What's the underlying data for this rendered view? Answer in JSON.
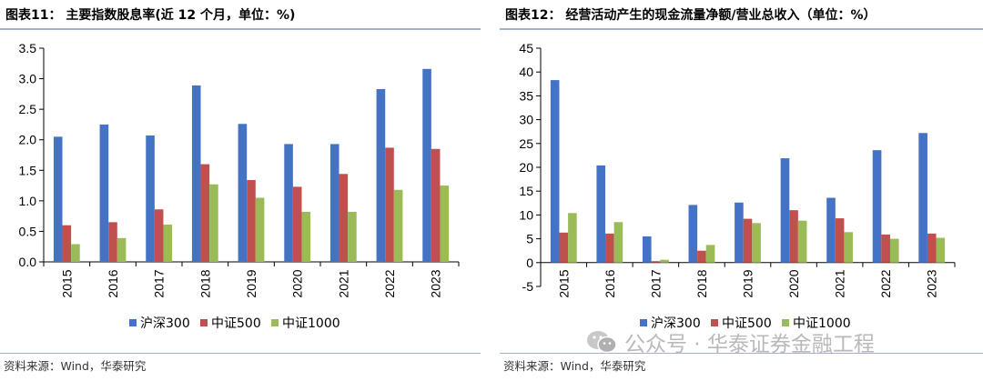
{
  "colors": {
    "hs300": "#4472c4",
    "zz500": "#c0504d",
    "zz1000": "#9bbb59",
    "rule": "#9fb5cc"
  },
  "left": {
    "title": "图表11：  主要指数股息率(近 12 个月，单位：%)",
    "source": "资料来源：Wind，华泰研究"
  },
  "right": {
    "title": "图表12：  经营活动产生的现金流量净额/营业总收入（单位：%）",
    "source": "资料来源：Wind，华泰研究"
  },
  "watermark": {
    "text": "公众号 · 华泰证券金融工程",
    "icon": "wechat-icon"
  },
  "chart_data": [
    {
      "type": "bar",
      "categories": [
        "2015",
        "2016",
        "2017",
        "2018",
        "2019",
        "2020",
        "2021",
        "2022",
        "2023"
      ],
      "series": [
        {
          "name": "沪深300",
          "values": [
            2.05,
            2.25,
            2.07,
            2.89,
            2.26,
            1.93,
            1.93,
            2.83,
            3.16
          ]
        },
        {
          "name": "中证500",
          "values": [
            0.6,
            0.65,
            0.86,
            1.6,
            1.34,
            1.23,
            1.44,
            1.87,
            1.85
          ]
        },
        {
          "name": "中证1000",
          "values": [
            0.29,
            0.39,
            0.61,
            1.27,
            1.05,
            0.82,
            0.82,
            1.18,
            1.25
          ]
        }
      ],
      "ylim": [
        0,
        3.5
      ],
      "yticks": [
        "0.0",
        "0.5",
        "1.0",
        "1.5",
        "2.0",
        "2.5",
        "3.0",
        "3.5"
      ],
      "ystep": 0.5,
      "grid": false,
      "legend": "bottom",
      "title": "",
      "xlabel": "",
      "ylabel": ""
    },
    {
      "type": "bar",
      "categories": [
        "2015",
        "2016",
        "2017",
        "2018",
        "2019",
        "2020",
        "2021",
        "2022",
        "2023"
      ],
      "series": [
        {
          "name": "沪深300",
          "values": [
            38.3,
            20.4,
            5.5,
            12.1,
            12.6,
            21.9,
            13.6,
            23.6,
            27.2
          ]
        },
        {
          "name": "中证500",
          "values": [
            6.3,
            6.1,
            0.3,
            2.5,
            9.2,
            11.0,
            9.3,
            5.9,
            6.1
          ]
        },
        {
          "name": "中证1000",
          "values": [
            10.4,
            8.5,
            0.6,
            3.7,
            8.3,
            8.8,
            6.4,
            5.0,
            5.2
          ]
        }
      ],
      "ylim": [
        -5,
        45
      ],
      "yticks": [
        "-5",
        "0",
        "5",
        "10",
        "15",
        "20",
        "25",
        "30",
        "35",
        "40",
        "45"
      ],
      "ystep": 5,
      "grid": false,
      "legend": "bottom",
      "title": "",
      "xlabel": "",
      "ylabel": ""
    }
  ]
}
